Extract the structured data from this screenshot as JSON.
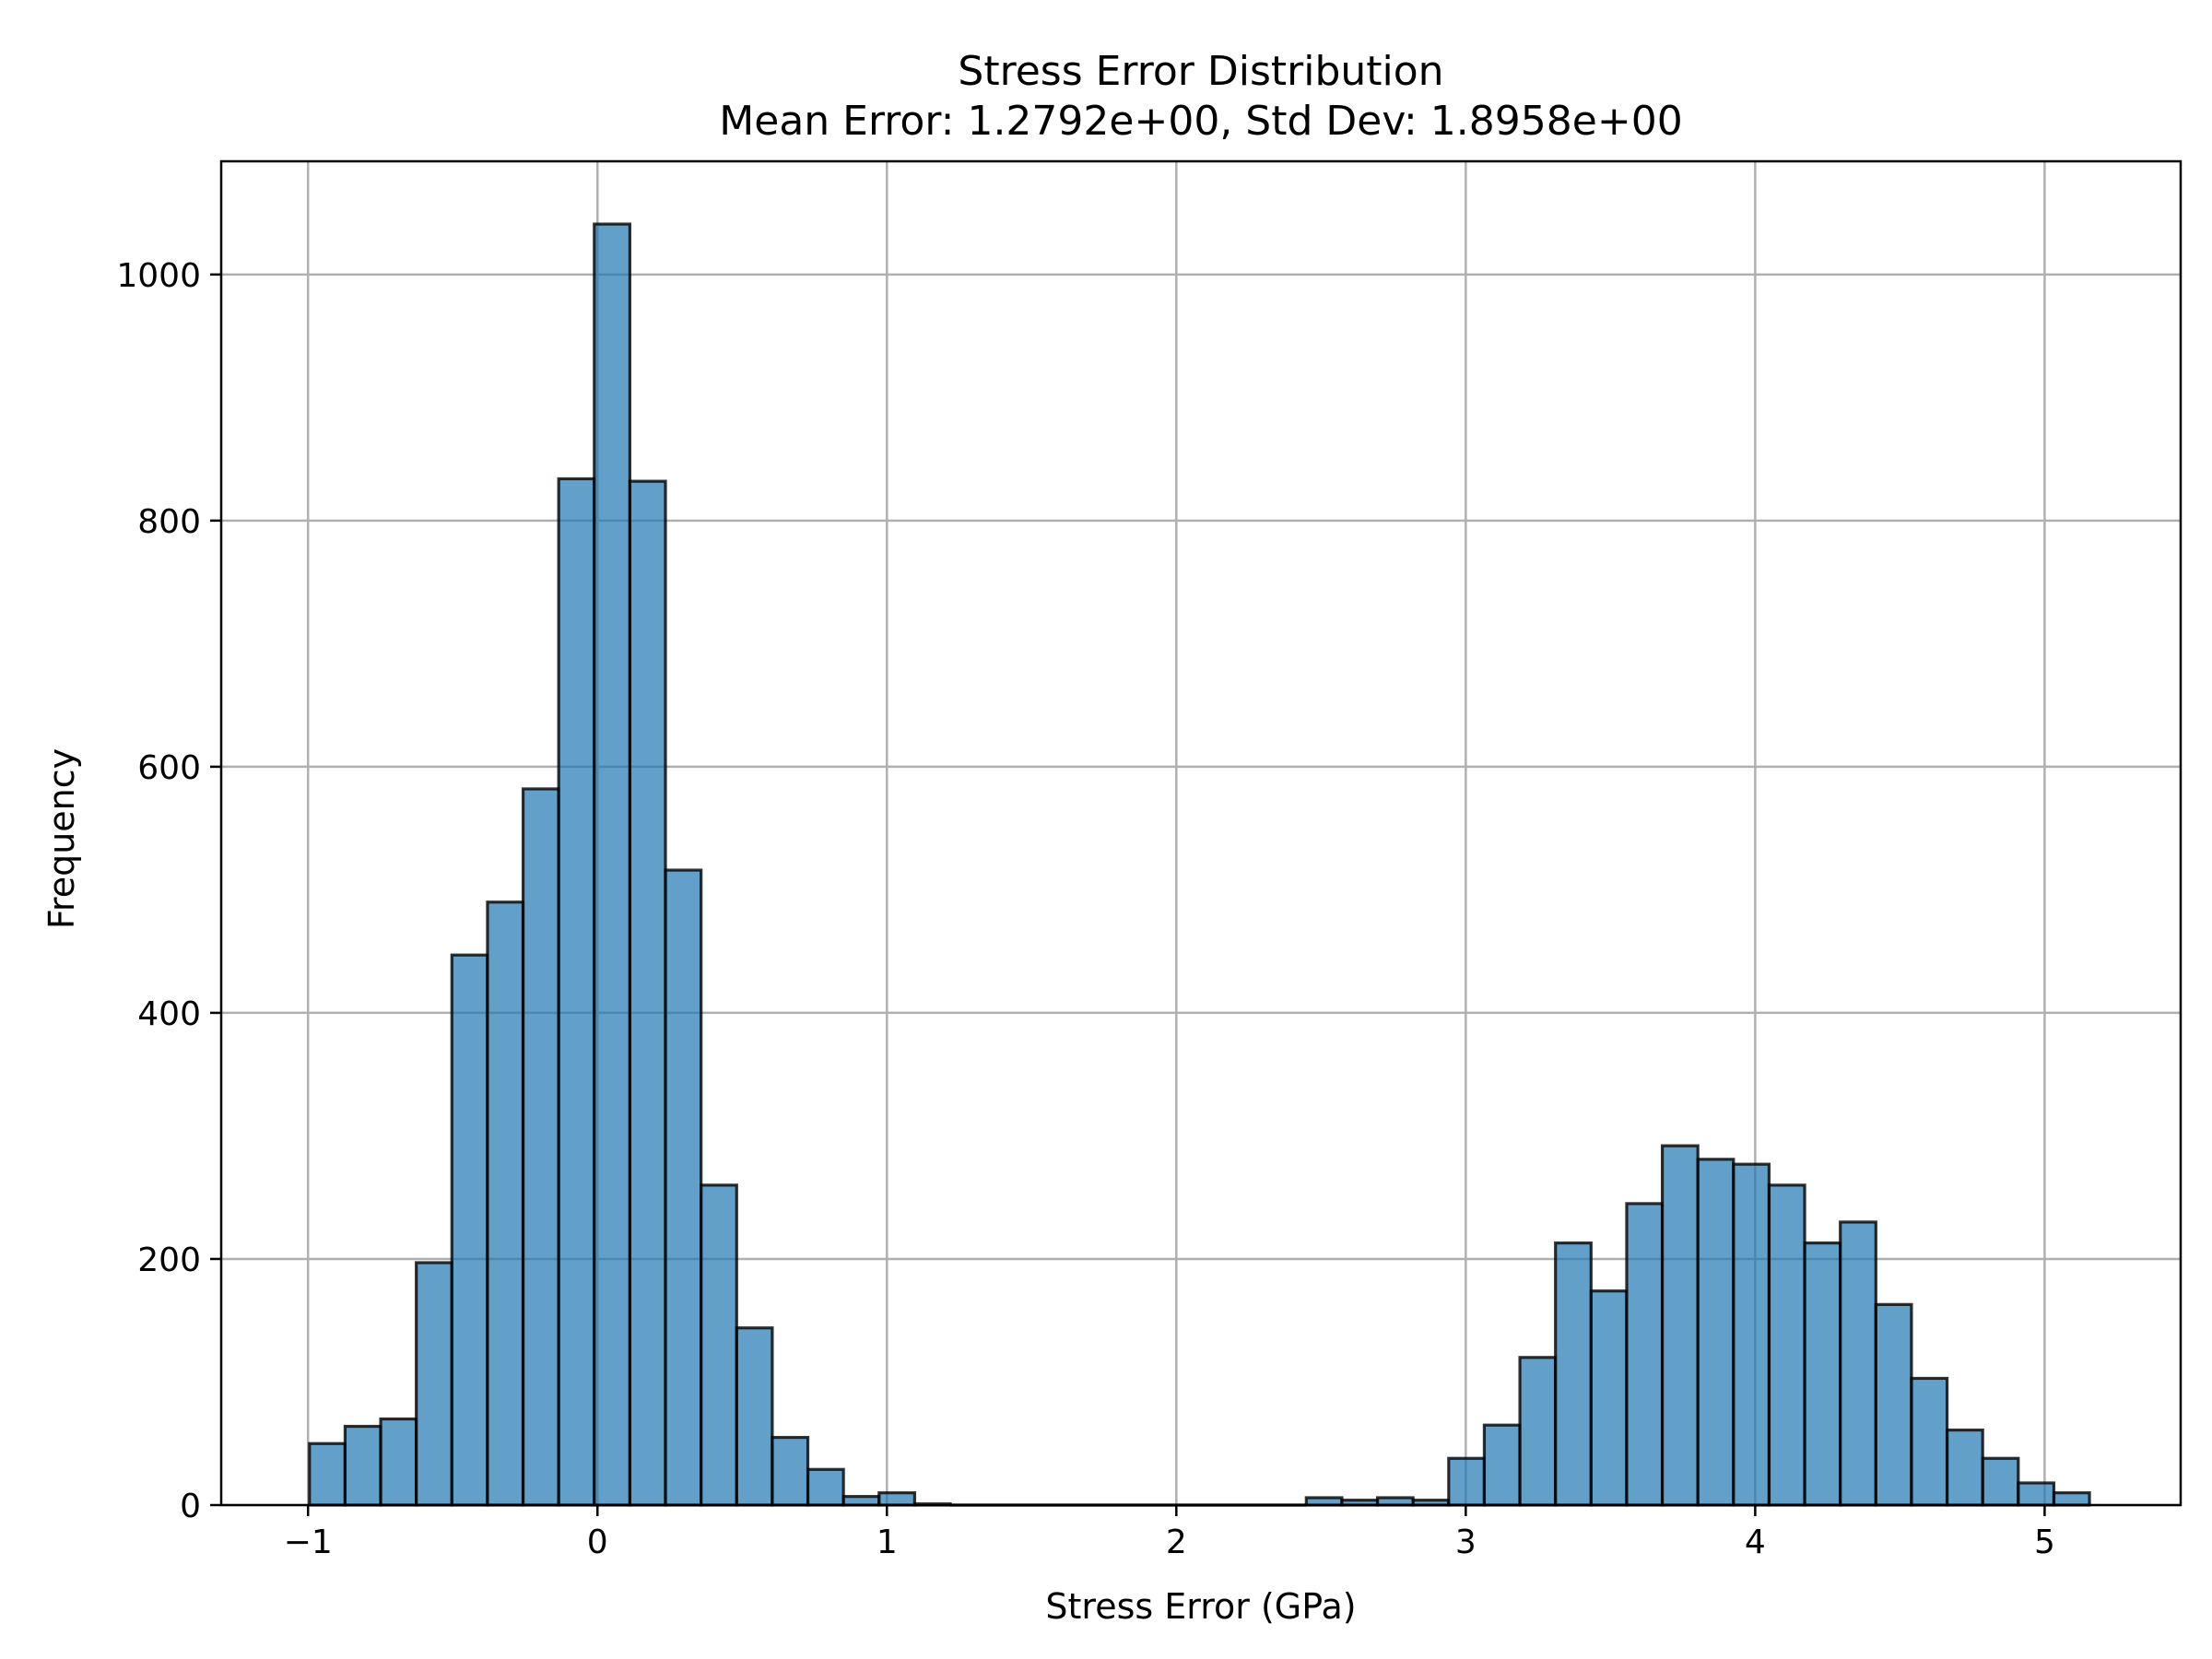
{
  "chart_data": {
    "type": "bar",
    "title": "Stress Error Distribution",
    "subtitle": "Mean Error: 1.2792e+00, Std Dev: 1.8958e+00",
    "xlabel": "Stress Error (GPa)",
    "ylabel": "Frequency",
    "xlim": [
      -1.3,
      5.47
    ],
    "ylim": [
      0,
      1092
    ],
    "xticks": [
      -1,
      0,
      1,
      2,
      3,
      4,
      5
    ],
    "xtick_labels": [
      "−1",
      "0",
      "1",
      "2",
      "3",
      "4",
      "5"
    ],
    "yticks": [
      0,
      200,
      400,
      600,
      800,
      1000
    ],
    "ytick_labels": [
      "0",
      "200",
      "400",
      "600",
      "800",
      "1000"
    ],
    "grid": true,
    "bin_edges": [
      -0.995,
      -0.872,
      -0.749,
      -0.626,
      -0.503,
      -0.38,
      -0.257,
      -0.134,
      -0.011,
      0.112,
      0.235,
      0.358,
      0.481,
      0.604,
      0.727,
      0.85,
      0.973,
      1.096,
      1.219,
      1.342,
      1.465,
      1.588,
      1.711,
      1.834,
      1.957,
      2.08,
      2.203,
      2.326,
      2.449,
      2.572,
      2.695,
      2.818,
      2.941,
      3.064,
      3.187,
      3.31,
      3.433,
      3.556,
      3.679,
      3.802,
      3.925,
      4.048,
      4.171,
      4.294,
      4.417,
      4.54,
      4.663,
      4.786,
      4.909,
      5.032,
      5.155
    ],
    "values": [
      50,
      64,
      70,
      197,
      447,
      490,
      582,
      834,
      1041,
      832,
      516,
      260,
      144,
      55,
      29,
      7,
      10,
      1,
      0,
      0,
      0,
      0,
      0,
      0,
      0,
      0,
      0,
      0,
      6,
      4,
      6,
      4,
      38,
      65,
      120,
      213,
      174,
      245,
      292,
      281,
      277,
      260,
      213,
      230,
      163,
      103,
      61,
      38,
      18,
      10
    ]
  }
}
